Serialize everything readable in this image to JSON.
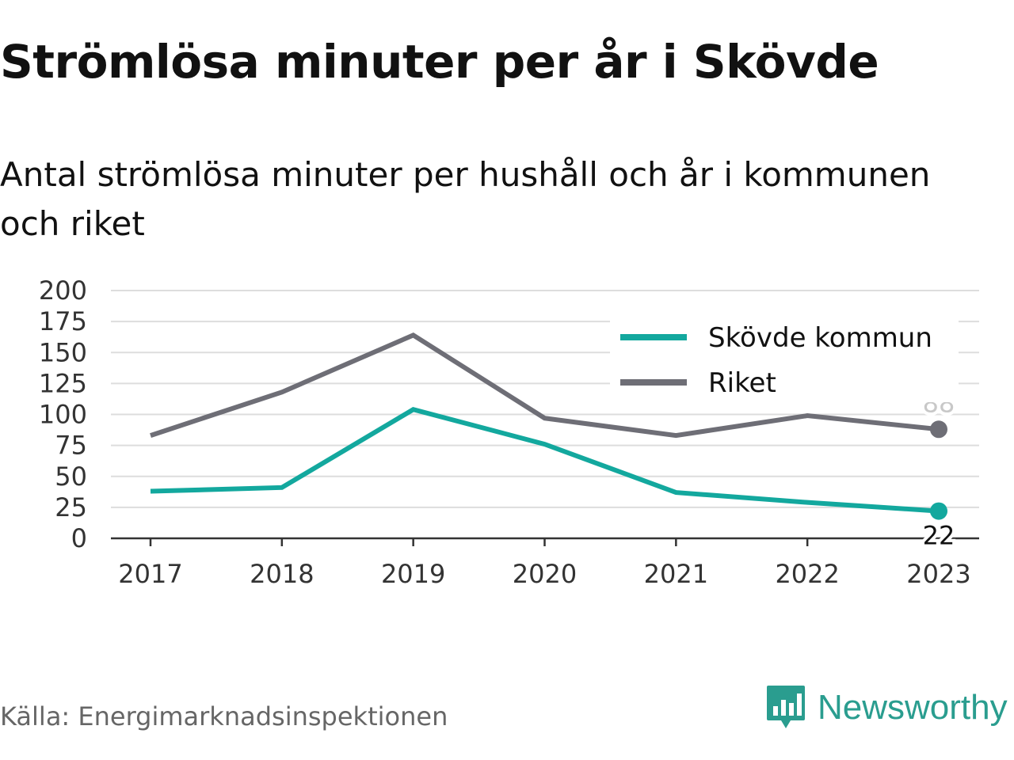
{
  "title": "Strömlösa minuter per år i Skövde",
  "subtitle": "Antal strömlösa minuter per hushåll och år i kommunen och riket",
  "source": "Källa: Energimarknadsinspektionen",
  "brand": "Newsworthy",
  "colors": {
    "skovde": "#13a89e",
    "riket": "#6e6e76",
    "grid": "#dddddd",
    "brand": "#2a9d8f"
  },
  "chart_data": {
    "type": "line",
    "x": [
      "2017",
      "2018",
      "2019",
      "2020",
      "2021",
      "2022",
      "2023"
    ],
    "ylim": [
      0,
      200
    ],
    "yticks": [
      0,
      25,
      50,
      75,
      100,
      125,
      150,
      175,
      200
    ],
    "grid": true,
    "legend_position": "top-right",
    "series": [
      {
        "name": "Skövde kommun",
        "color": "#13a89e",
        "values": [
          38,
          41,
          104,
          76,
          37,
          29,
          22
        ],
        "end_label": "22"
      },
      {
        "name": "Riket",
        "color": "#6e6e76",
        "values": [
          83,
          118,
          164,
          97,
          83,
          99,
          88
        ],
        "end_label": "88"
      }
    ]
  }
}
